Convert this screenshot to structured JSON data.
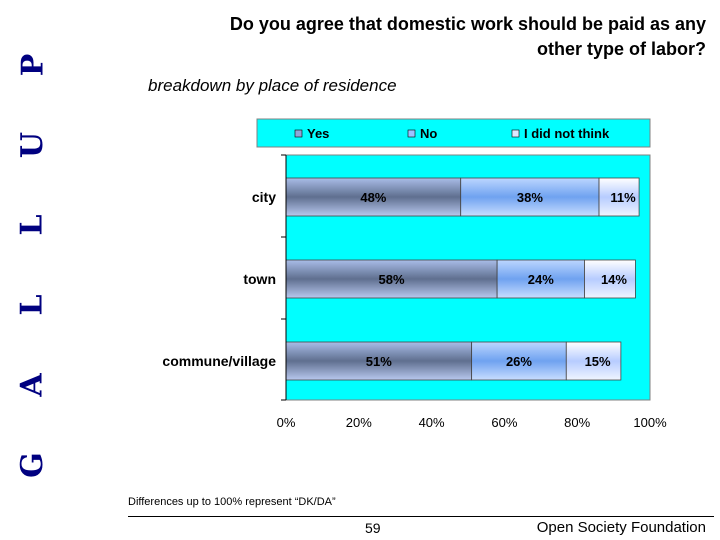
{
  "brand": {
    "letters": [
      "G",
      "A",
      "L",
      "L",
      "U",
      "P"
    ],
    "color": "#000080"
  },
  "slide": {
    "title_line1": "Do you agree that domestic work should be paid as any",
    "title_line2": "other type of labor?",
    "subtitle": "breakdown by place of residence",
    "footnote": "Differences up to 100% represent “DK/DA”",
    "page_number": "59",
    "organization": "Open Society Foundation"
  },
  "chart_data": {
    "type": "bar",
    "orientation": "horizontal",
    "stacked": true,
    "categories": [
      "city",
      "town",
      "commune/village"
    ],
    "series": [
      {
        "name": "Yes",
        "values": [
          48,
          58,
          51
        ],
        "labels": [
          "48%",
          "58%",
          "51%"
        ],
        "color": "#8fa6d8"
      },
      {
        "name": "No",
        "values": [
          38,
          24,
          26
        ],
        "labels": [
          "38%",
          "24%",
          "26%"
        ],
        "color": "#9bc2ff"
      },
      {
        "name": "I did not think",
        "values": [
          11,
          14,
          15
        ],
        "labels": [
          "11%",
          "14%",
          "15%"
        ],
        "color": "#dce8ff"
      }
    ],
    "xlim": [
      0,
      100
    ],
    "x_ticks": [
      "0%",
      "20%",
      "40%",
      "60%",
      "80%",
      "100%"
    ],
    "legend_position": "top",
    "plot_background": "#00ffff",
    "grid": false
  }
}
